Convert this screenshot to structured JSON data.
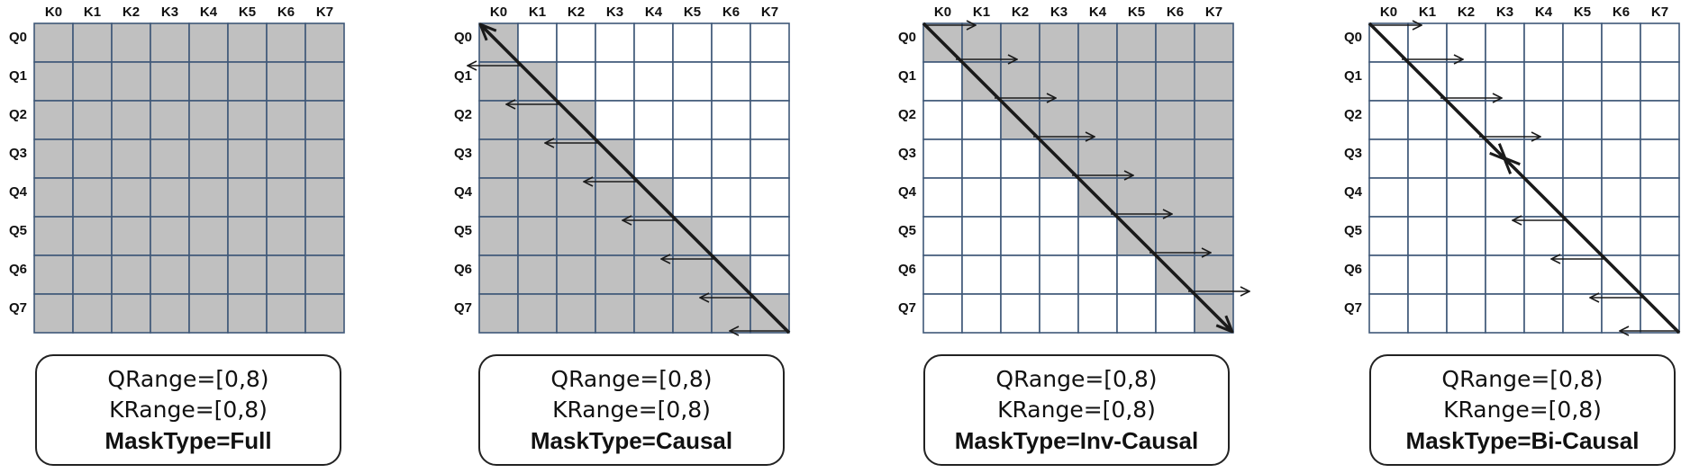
{
  "k_labels": [
    "K0",
    "K1",
    "K2",
    "K3",
    "K4",
    "K5",
    "K6",
    "K7"
  ],
  "q_labels": [
    "Q0",
    "Q1",
    "Q2",
    "Q3",
    "Q4",
    "Q5",
    "Q6",
    "Q7"
  ],
  "colors": {
    "filled": "#c0c0c0",
    "empty": "#ffffff",
    "grid": "#3f5878",
    "ink": "#1a1a1a"
  },
  "panels": [
    {
      "id": "full",
      "mask": "full",
      "qrange": "QRange=[0,8)",
      "krange": "KRange=[0,8)",
      "masktype": "MaskType=Full"
    },
    {
      "id": "causal",
      "mask": "causal",
      "qrange": "QRange=[0,8)",
      "krange": "KRange=[0,8)",
      "masktype": "MaskType=Causal"
    },
    {
      "id": "inv-causal",
      "mask": "inv-causal",
      "qrange": "QRange=[0,8)",
      "krange": "KRange=[0,8)",
      "masktype": "MaskType=Inv-Causal"
    },
    {
      "id": "bi-causal",
      "mask": "bi-causal",
      "qrange": "QRange=[0,8)",
      "krange": "KRange=[0,8)",
      "masktype": "MaskType=Bi-Causal"
    }
  ]
}
